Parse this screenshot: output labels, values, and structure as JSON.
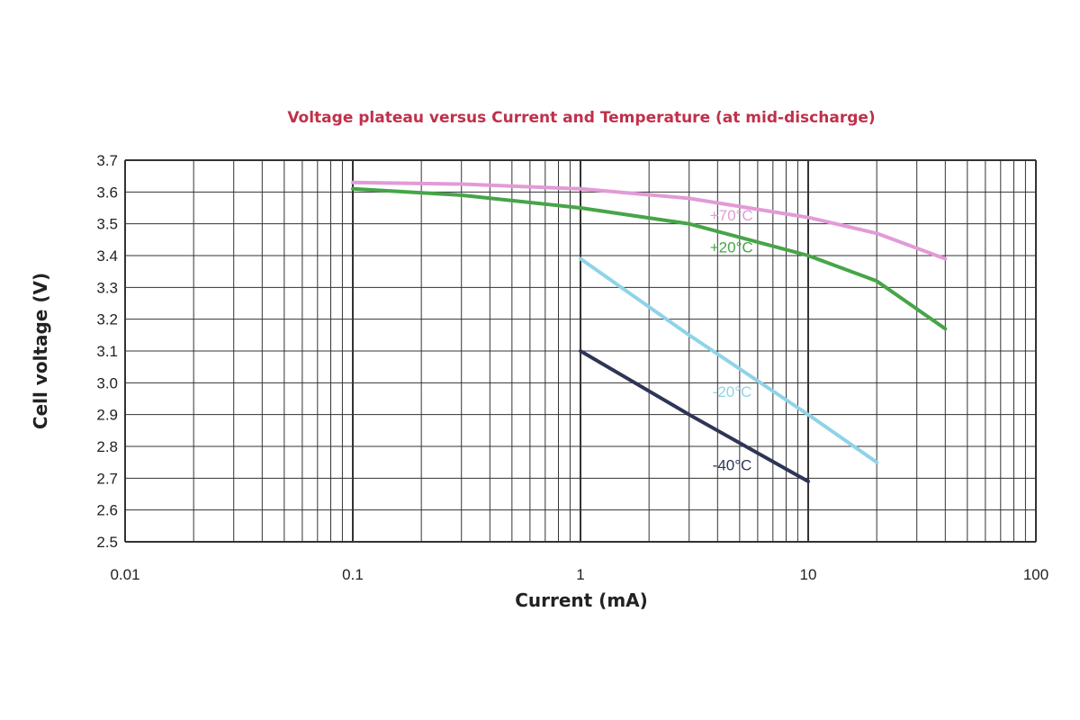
{
  "chart_data": {
    "type": "line",
    "title": "Voltage plateau versus Current and Temperature (at mid-discharge)",
    "xlabel": "Current (mA)",
    "ylabel": "Cell voltage (V)",
    "xscale": "log",
    "xlim": [
      0.01,
      100
    ],
    "ylim": [
      2.5,
      3.7
    ],
    "xticks": [
      "0.01",
      "0.1",
      "1",
      "10",
      "100"
    ],
    "yticks": [
      "2.5",
      "2.6",
      "2.7",
      "2.8",
      "2.9",
      "3.0",
      "3.1",
      "3.2",
      "3.3",
      "3.4",
      "3.5",
      "3.6",
      "3.7"
    ],
    "grid": true,
    "series": [
      {
        "name": "+70°C",
        "color": "#e29bd6",
        "points": [
          [
            0.1,
            3.63
          ],
          [
            0.3,
            3.625
          ],
          [
            1,
            3.61
          ],
          [
            3,
            3.58
          ],
          [
            10,
            3.52
          ],
          [
            20,
            3.47
          ],
          [
            40,
            3.39
          ]
        ]
      },
      {
        "name": "+20°C",
        "color": "#46a548",
        "points": [
          [
            0.1,
            3.61
          ],
          [
            0.3,
            3.59
          ],
          [
            1,
            3.55
          ],
          [
            3,
            3.5
          ],
          [
            10,
            3.4
          ],
          [
            20,
            3.32
          ],
          [
            40,
            3.17
          ]
        ]
      },
      {
        "name": "-20°C",
        "color": "#8fd3e8",
        "points": [
          [
            1,
            3.39
          ],
          [
            3,
            3.15
          ],
          [
            10,
            2.9
          ],
          [
            20,
            2.75
          ]
        ]
      },
      {
        "name": "-40°C",
        "color": "#2f3557",
        "points": [
          [
            1,
            3.1
          ],
          [
            3,
            2.9
          ],
          [
            10,
            2.69
          ]
        ]
      }
    ]
  },
  "colors": {
    "title": "#c0304a",
    "grid": "#333333"
  }
}
